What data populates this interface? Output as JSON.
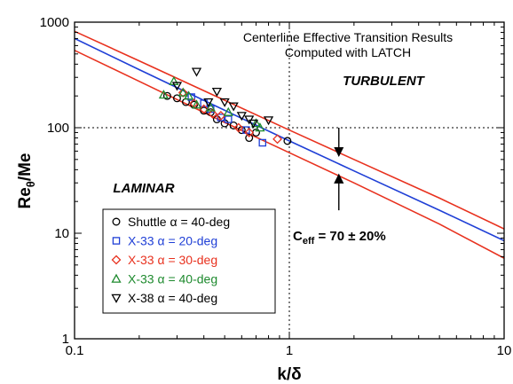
{
  "chart_data": {
    "type": "scatter",
    "x_scale": "log",
    "y_scale": "log",
    "xlim": [
      0.1,
      10
    ],
    "ylim": [
      1,
      1000
    ],
    "xlabel": "k/δ",
    "ylabel_main": "Re",
    "ylabel_sub": "θ",
    "ylabel_tail": "/Me",
    "x_ticks": [
      {
        "value": 0.1,
        "label": "0.1"
      },
      {
        "value": 1,
        "label": "1"
      },
      {
        "value": 10,
        "label": "10"
      }
    ],
    "y_ticks": [
      {
        "value": 1,
        "label": "1"
      },
      {
        "value": 10,
        "label": "10"
      },
      {
        "value": 100,
        "label": "100"
      },
      {
        "value": 1000,
        "label": "1000"
      }
    ],
    "reference_lines": {
      "x": 1,
      "y": 100,
      "style": "dotted"
    },
    "annotation_lines": [
      "Centerline Effective Transition Results",
      "Computed with LATCH"
    ],
    "regions": {
      "upper": "TURBULENT",
      "lower": "LAMINAR"
    },
    "correlation": {
      "label_main": "C",
      "label_sub": "eff",
      "label_tail": " = 70 ± 20%",
      "center_color": "#1f3fd6",
      "band_color": "#e8311e",
      "curves": [
        {
          "name": "upper",
          "points": [
            [
              0.1,
              820
            ],
            [
              0.2,
              430
            ],
            [
              0.5,
              182
            ],
            [
              1,
              95
            ],
            [
              2,
              50
            ],
            [
              5,
              21.5
            ],
            [
              10,
              11
            ]
          ]
        },
        {
          "name": "center",
          "points": [
            [
              0.1,
              700
            ],
            [
              0.2,
              355
            ],
            [
              0.5,
              146
            ],
            [
              1,
              75
            ],
            [
              2,
              39
            ],
            [
              5,
              16.5
            ],
            [
              10,
              8.5
            ]
          ]
        },
        {
          "name": "lower",
          "points": [
            [
              0.1,
              540
            ],
            [
              0.2,
              275
            ],
            [
              0.5,
              112
            ],
            [
              1,
              58
            ],
            [
              2,
              30
            ],
            [
              5,
              12.2
            ],
            [
              10,
              5.8
            ]
          ]
        }
      ],
      "arrows": [
        {
          "x": 1.7,
          "from": 100,
          "to": 54
        },
        {
          "x": 1.7,
          "from": 16.5,
          "to": 36
        }
      ]
    },
    "series": [
      {
        "name": "Shuttle α = 40-deg",
        "marker": "circle",
        "color": "#000000",
        "points": [
          [
            0.27,
            200
          ],
          [
            0.3,
            190
          ],
          [
            0.33,
            175
          ],
          [
            0.36,
            165
          ],
          [
            0.4,
            145
          ],
          [
            0.43,
            140
          ],
          [
            0.46,
            120
          ],
          [
            0.5,
            110
          ],
          [
            0.55,
            105
          ],
          [
            0.6,
            95
          ],
          [
            0.65,
            80
          ],
          [
            0.7,
            90
          ],
          [
            0.98,
            75
          ]
        ]
      },
      {
        "name": "X-33 α = 20-deg",
        "marker": "square",
        "color": "#1f3fd6",
        "points": [
          [
            0.35,
            195
          ],
          [
            0.4,
            170
          ],
          [
            0.43,
            150
          ],
          [
            0.48,
            125
          ],
          [
            0.52,
            120
          ],
          [
            0.63,
            95
          ],
          [
            0.75,
            72
          ]
        ]
      },
      {
        "name": "X-33 α = 30-deg",
        "marker": "diamond",
        "color": "#e8311e",
        "points": [
          [
            0.32,
            215
          ],
          [
            0.36,
            170
          ],
          [
            0.4,
            150
          ],
          [
            0.44,
            135
          ],
          [
            0.48,
            130
          ],
          [
            0.58,
            100
          ],
          [
            0.65,
            90
          ],
          [
            0.88,
            78
          ]
        ]
      },
      {
        "name": "X-33 α = 40-deg",
        "marker": "triangle-up",
        "color": "#1e8a2e",
        "points": [
          [
            0.26,
            205
          ],
          [
            0.29,
            275
          ],
          [
            0.32,
            215
          ],
          [
            0.34,
            200
          ],
          [
            0.37,
            165
          ],
          [
            0.43,
            155
          ],
          [
            0.52,
            140
          ],
          [
            0.7,
            110
          ],
          [
            0.73,
            100
          ]
        ]
      },
      {
        "name": "X-38 α = 40-deg",
        "marker": "triangle-down",
        "color": "#000000",
        "points": [
          [
            0.3,
            250
          ],
          [
            0.37,
            340
          ],
          [
            0.42,
            175
          ],
          [
            0.46,
            220
          ],
          [
            0.5,
            175
          ],
          [
            0.55,
            160
          ],
          [
            0.6,
            130
          ],
          [
            0.65,
            120
          ],
          [
            0.68,
            110
          ],
          [
            0.8,
            118
          ]
        ]
      }
    ],
    "legend": {
      "placement": "lower-left"
    }
  }
}
